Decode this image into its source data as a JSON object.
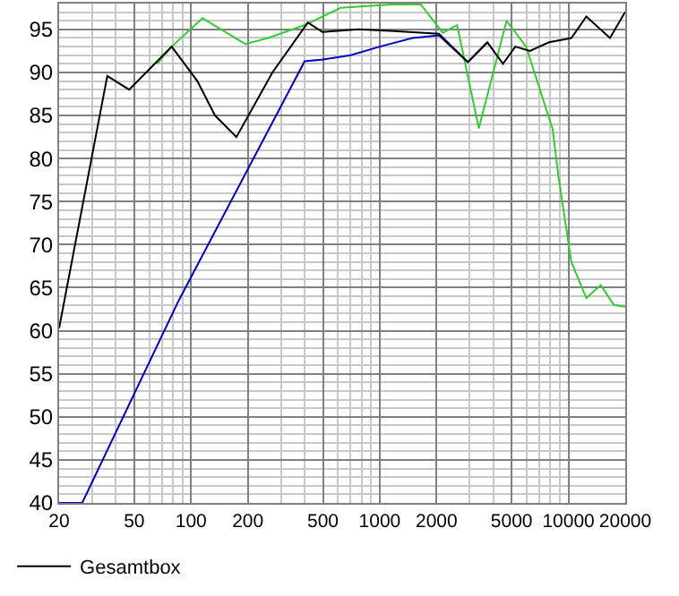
{
  "chart_data": {
    "type": "line",
    "series": [
      {
        "name": "Gesamtbox",
        "color": "#000000",
        "x": [
          20,
          36,
          47,
          79,
          108,
          134,
          174,
          270,
          416,
          497,
          770,
          1194,
          2060,
          2930,
          3720,
          4500,
          5230,
          6250,
          7880,
          10360,
          12440,
          16600,
          19700,
          20000
        ],
        "values": [
          60.3,
          89.6,
          88,
          93,
          89,
          85,
          82.5,
          90,
          95.8,
          94.7,
          95,
          94.8,
          94.5,
          91.2,
          93.5,
          91,
          93,
          92.5,
          93.5,
          94,
          96.5,
          94,
          96.8,
          97
        ]
      },
      {
        "color": "#0000c0",
        "x": [
          20,
          26.5,
          86,
          400,
          500,
          700,
          1000,
          1490,
          2060,
          2930,
          3720
        ],
        "values": [
          40,
          40,
          63.5,
          91.3,
          91.5,
          92,
          93,
          94,
          94.3,
          91.2,
          93.5
        ]
      },
      {
        "color": "#33cc33",
        "x": [
          66,
          79,
          115,
          194,
          256,
          400,
          620,
          1150,
          1650,
          2160,
          2570,
          3350,
          4700,
          5970,
          8250,
          8840,
          10360,
          12440,
          14850,
          17400,
          20000
        ],
        "values": [
          91,
          93,
          96.3,
          93.3,
          94,
          95.5,
          97.5,
          97.9,
          97.9,
          94.6,
          95.5,
          83.5,
          96,
          93,
          83.4,
          78,
          68,
          63.8,
          65.3,
          63,
          62.8
        ]
      }
    ],
    "log": "x",
    "xlim": [
      20,
      20000
    ],
    "xticks": [
      20,
      50,
      100,
      200,
      500,
      1000,
      2000,
      5000,
      10000,
      20000
    ],
    "ylim": [
      40,
      98
    ],
    "yticks": [
      40,
      45,
      50,
      55,
      60,
      65,
      70,
      75,
      80,
      85,
      90,
      95
    ],
    "grid": true,
    "legend": "bottom"
  }
}
